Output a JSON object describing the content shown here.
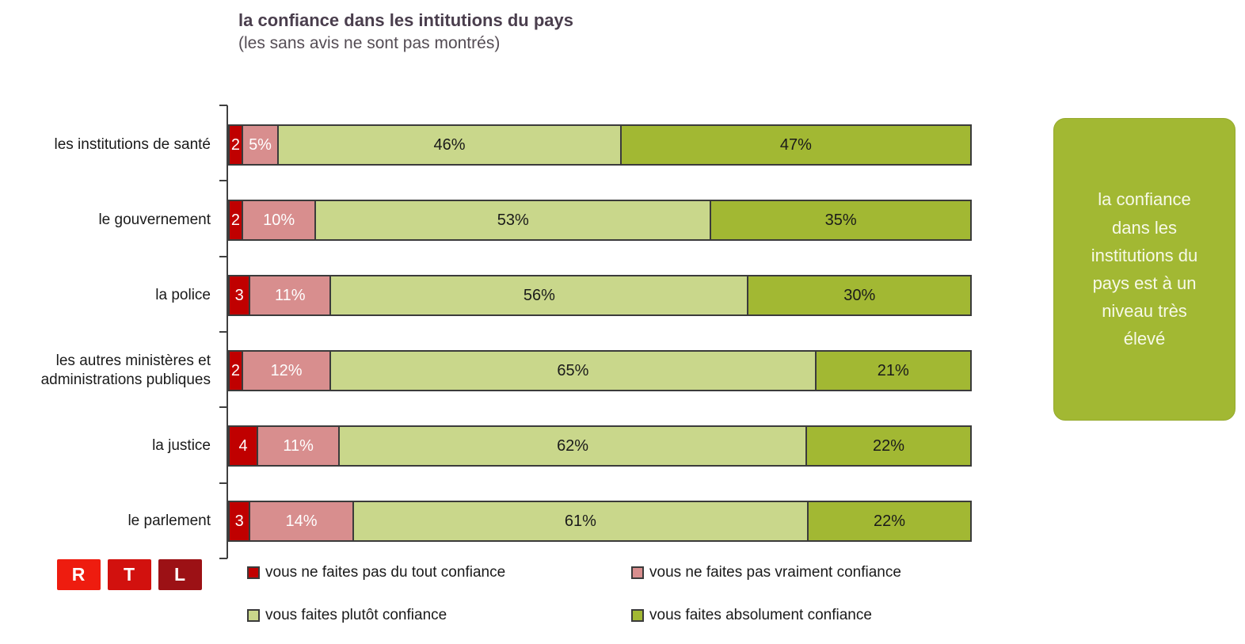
{
  "header": {
    "title": "la confiance dans les intitutions du pays",
    "subtitle": "(les sans avis ne sont pas montrés)"
  },
  "chart_data": {
    "type": "bar",
    "orientation": "horizontal",
    "stacked": true,
    "title": "la confiance dans les intitutions du pays",
    "subtitle": "(les sans avis ne sont pas montrés)",
    "categories": [
      "les institutions de santé",
      "le gouvernement",
      "la police",
      "les autres ministères et administrations publiques",
      "la justice",
      "le parlement"
    ],
    "series": [
      {
        "name": "vous ne faites pas du tout confiance",
        "color": "#c00000",
        "label_color": "#ffffff",
        "label_format": "number",
        "values": [
          2,
          2,
          3,
          2,
          4,
          3
        ]
      },
      {
        "name": "vous ne faites pas vraiment confiance",
        "color": "#d88e8e",
        "label_color": "#ffffff",
        "label_format": "percent",
        "values": [
          5,
          10,
          11,
          12,
          11,
          14
        ]
      },
      {
        "name": "vous faites plutôt confiance",
        "color": "#c9d78b",
        "label_color": "#1a1a1a",
        "label_format": "percent",
        "values": [
          46,
          53,
          56,
          65,
          62,
          61
        ]
      },
      {
        "name": "vous faites absolument confiance",
        "color": "#a2b833",
        "label_color": "#1a1a1a",
        "label_format": "percent",
        "values": [
          47,
          35,
          30,
          21,
          22,
          22
        ]
      }
    ],
    "xlim": [
      0,
      100
    ],
    "grid": false,
    "legend_position": "bottom"
  },
  "callout": {
    "text": "la confiance\ndans les\ninstitutions du\npays est à un\nniveau très\nélevé",
    "bg": "#a2b833",
    "text_color": "#f7f9e8"
  },
  "logo": {
    "letters": [
      "R",
      "T",
      "L"
    ],
    "colors": [
      "#ee1c0f",
      "#d2110e",
      "#9c1115"
    ],
    "letter_color": "#ffffff"
  },
  "style": {
    "bar_border": "#3b3b3b",
    "axis_color": "#404040",
    "title_color": "#4a3e4d"
  }
}
